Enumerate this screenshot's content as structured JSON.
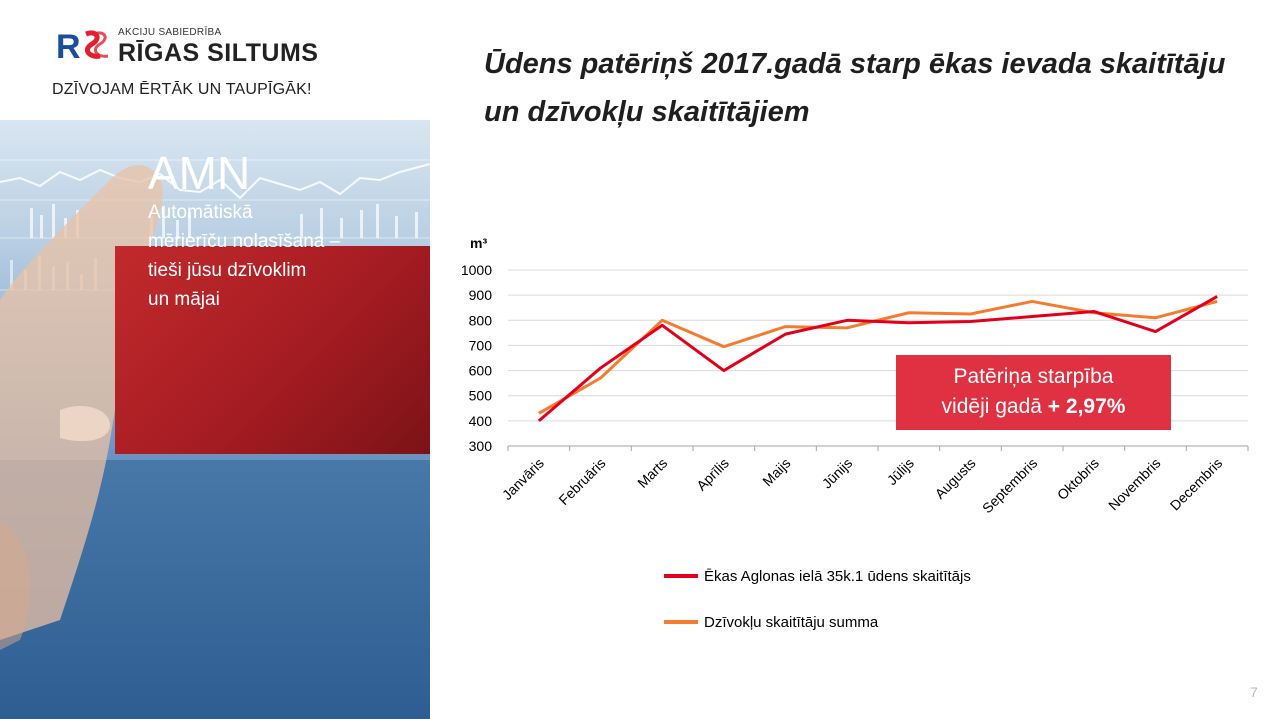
{
  "logo": {
    "small_text": "AKCIJU SABIEDRĪBA",
    "name": "RĪGAS SILTUMS",
    "slogan": "DZĪVOJAM ĒRTĀK UN TAUPĪGĀK!",
    "mark_icon": "rs-logo-icon",
    "colors": {
      "red": "#e2202f",
      "blue": "#1b4f9c"
    }
  },
  "panel": {
    "title": "AMN",
    "subtitle": "Automātiskā\nmērierīču nolasīšana –\ntieši jūsu dzīvoklim\nun mājai"
  },
  "slide": {
    "title": "Ūdens patēriņš 2017.gadā starp ēkas ievada skaitītāju un dzīvokļu skaitītājiem",
    "page_number": "7"
  },
  "callout": {
    "line1": "Patēriņa starpība",
    "line2_prefix": "vidēji gadā ",
    "line2_bold": "+ 2,97%",
    "color": "#e03142"
  },
  "chart_data": {
    "type": "line",
    "ylabel": "m³",
    "ylim": [
      300,
      1000
    ],
    "yticks": [
      1000,
      900,
      800,
      700,
      600,
      500,
      400,
      300
    ],
    "grid": true,
    "legend_position": "bottom",
    "categories": [
      "Janvāris",
      "Februāris",
      "Marts",
      "Aprīlis",
      "Maijs",
      "Jūnijs",
      "Jūlijs",
      "Augusts",
      "Septembris",
      "Oktobris",
      "Novembris",
      "Decembris"
    ],
    "series": [
      {
        "name": "Ēkas Aglonas ielā 35k.1 ūdens skaitītājs",
        "color": "#e2001a",
        "values": [
          400,
          610,
          780,
          600,
          745,
          800,
          790,
          795,
          815,
          835,
          755,
          895
        ]
      },
      {
        "name": "Dzīvokļu skaitītāju summa",
        "color": "#f47c30",
        "values": [
          430,
          570,
          800,
          695,
          775,
          770,
          830,
          825,
          875,
          830,
          810,
          875
        ]
      }
    ]
  }
}
